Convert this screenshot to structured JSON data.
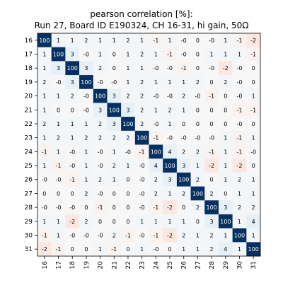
{
  "chart_data": {
    "type": "heatmap",
    "title_line1": "pearson correlation [%]:",
    "title_line2": "Run 27, Board ID E190324, CH 16-31, hi gain, 50Ω",
    "x_labels": [
      "16",
      "17",
      "18",
      "19",
      "20",
      "21",
      "22",
      "23",
      "24",
      "25",
      "26",
      "27",
      "28",
      "29",
      "30",
      "31"
    ],
    "y_labels": [
      "16",
      "17",
      "18",
      "19",
      "20",
      "21",
      "22",
      "23",
      "24",
      "25",
      "26",
      "27",
      "28",
      "29",
      "30",
      "31"
    ],
    "values": [
      [
        100,
        1,
        1,
        2,
        1,
        1,
        2,
        1,
        -1,
        1,
        0,
        0,
        0,
        1,
        -1,
        -2
      ],
      [
        1,
        100,
        3,
        0,
        1,
        0,
        1,
        2,
        1,
        -1,
        0,
        0,
        1,
        1,
        1,
        -1
      ],
      [
        1,
        3,
        100,
        3,
        2,
        0,
        1,
        1,
        0,
        0,
        -1,
        0,
        0,
        -2,
        0,
        0
      ],
      [
        2,
        0,
        3,
        100,
        0,
        0,
        1,
        2,
        1,
        1,
        1,
        2,
        0,
        2,
        0,
        0
      ],
      [
        1,
        1,
        2,
        0,
        100,
        3,
        2,
        2,
        0,
        0,
        2,
        0,
        -1,
        0,
        0,
        1
      ],
      [
        1,
        0,
        0,
        0,
        3,
        100,
        3,
        2,
        1,
        2,
        1,
        0,
        0,
        0,
        -1,
        -1
      ],
      [
        2,
        1,
        1,
        1,
        2,
        3,
        100,
        2,
        0,
        1,
        0,
        0,
        0,
        0,
        0,
        0
      ],
      [
        1,
        2,
        1,
        2,
        2,
        2,
        2,
        100,
        -1,
        0,
        0,
        0,
        0,
        1,
        -1,
        1
      ],
      [
        -1,
        1,
        0,
        1,
        0,
        1,
        0,
        -1,
        100,
        4,
        2,
        2,
        -1,
        1,
        -1,
        0
      ],
      [
        1,
        -1,
        0,
        1,
        0,
        2,
        1,
        0,
        4,
        100,
        3,
        1,
        -2,
        1,
        -2,
        0
      ],
      [
        0,
        0,
        -1,
        1,
        2,
        1,
        0,
        0,
        2,
        3,
        100,
        2,
        0,
        1,
        2,
        1
      ],
      [
        0,
        0,
        0,
        2,
        0,
        0,
        0,
        0,
        2,
        1,
        2,
        100,
        2,
        0,
        1,
        1
      ],
      [
        0,
        0,
        0,
        0,
        -1,
        0,
        0,
        0,
        -1,
        -2,
        0,
        2,
        100,
        3,
        2,
        2
      ],
      [
        1,
        1,
        -2,
        2,
        0,
        0,
        0,
        1,
        1,
        1,
        1,
        0,
        3,
        100,
        1,
        4
      ],
      [
        -1,
        1,
        0,
        0,
        0,
        2,
        -1,
        0,
        -1,
        -2,
        2,
        1,
        2,
        1,
        100,
        1
      ],
      [
        -2,
        -1,
        0,
        0,
        1,
        -1,
        0,
        1,
        0,
        0,
        1,
        1,
        2,
        4,
        1,
        100
      ]
    ],
    "colors": {
      "max": "#053061",
      "mid": "#f7f7f7",
      "min": "#67001f"
    }
  }
}
